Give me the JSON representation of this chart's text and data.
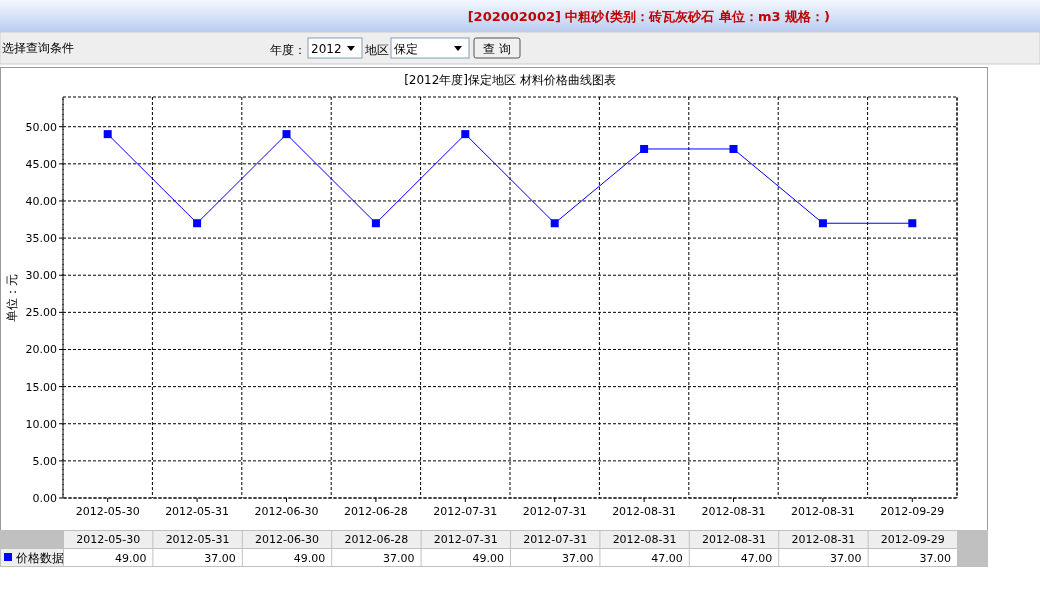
{
  "chart_data": {
    "type": "line",
    "title": "[2012年度]保定地区 材料价格曲线图表",
    "subtitle": "[202002002] 中粗砂(类别：砖瓦灰砂石 单位：m3 规格：)",
    "ylabel": "单位：元",
    "annotations": [
      "选择查询条件",
      "年度：",
      "2012",
      "地区",
      "保定",
      "查 询"
    ],
    "categories": [
      "2012-05-30",
      "2012-05-31",
      "2012-06-30",
      "2012-06-28",
      "2012-07-31",
      "2012-07-31",
      "2012-08-31",
      "2012-08-31",
      "2012-08-31",
      "2012-09-29"
    ],
    "series": [
      {
        "name": "价格数据",
        "color": "#0000ff",
        "values": [
          49,
          37,
          49,
          37,
          49,
          37,
          47,
          47,
          37,
          37
        ],
        "value_labels": [
          "49.00",
          "37.00",
          "49.00",
          "37.00",
          "49.00",
          "37.00",
          "47.00",
          "47.00",
          "37.00",
          "37.00"
        ]
      }
    ],
    "ylim": [
      0,
      54
    ],
    "yticks": [
      {
        "value": 0,
        "label": "0.00"
      },
      {
        "value": 5,
        "label": "5.00"
      },
      {
        "value": 10,
        "label": "10.00"
      },
      {
        "value": 15,
        "label": "15.00"
      },
      {
        "value": 20,
        "label": "20.00"
      },
      {
        "value": 25,
        "label": "25.00"
      },
      {
        "value": 30,
        "label": "30.00"
      },
      {
        "value": 35,
        "label": "35.00"
      },
      {
        "value": 40,
        "label": "40.00"
      },
      {
        "value": 45,
        "label": "45.00"
      },
      {
        "value": 50,
        "label": "50.00"
      }
    ],
    "grid": true,
    "marker": "square",
    "legend": "bottom"
  }
}
